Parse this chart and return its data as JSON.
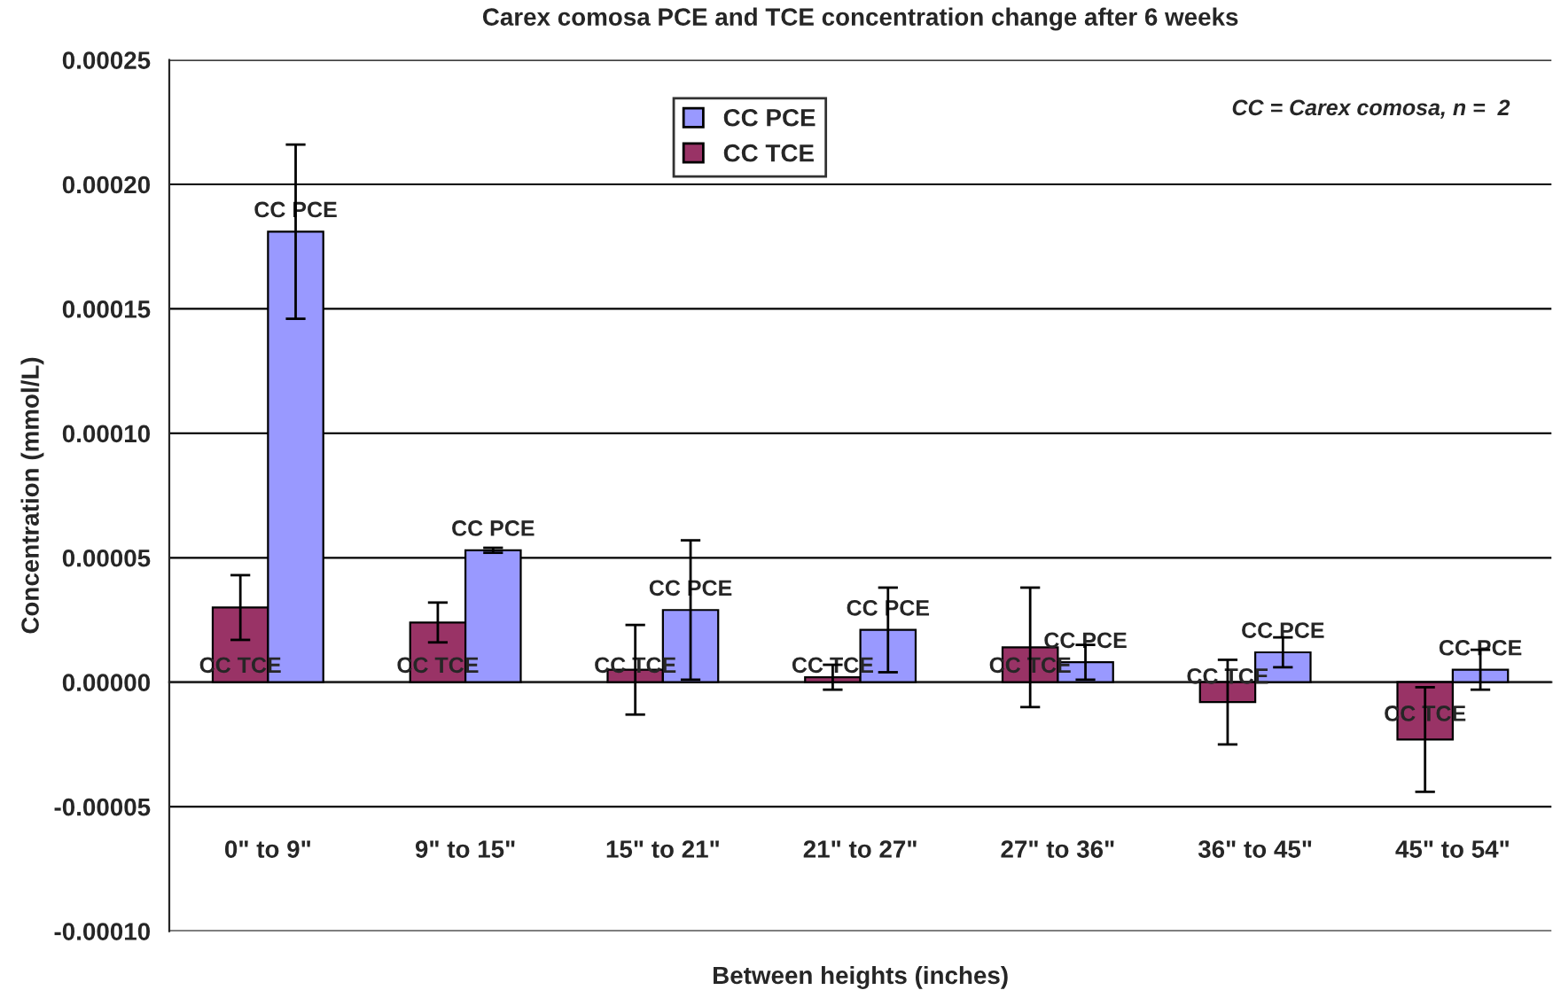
{
  "chart_data": {
    "type": "bar",
    "title": "Carex comosa PCE and TCE concentration change after 6 weeks",
    "xlabel": "Between heights (inches)",
    "ylabel": "Concentration (mmol/L)",
    "categories": [
      "0\" to 9\"",
      "9\" to 15\"",
      "15\" to 21\"",
      "21\" to 27\"",
      "27\" to 36\"",
      "36\" to 45\"",
      "45\" to 54\""
    ],
    "series": [
      {
        "name": "CC TCE",
        "color": "#993366",
        "values": [
          3e-05,
          2.4e-05,
          5e-06,
          2e-06,
          1.4e-05,
          -8e-06,
          -2.3e-05
        ],
        "errors": [
          1.3e-05,
          8e-06,
          1.8e-05,
          5e-06,
          2.4e-05,
          1.7e-05,
          2.1e-05
        ],
        "value_labels": [
          "CC TCE",
          "CC TCE",
          "CC TCE",
          "CC TCE",
          "CC TCE",
          "CC TCE",
          "CC TCE"
        ]
      },
      {
        "name": "CC PCE",
        "color": "#9999ff",
        "values": [
          0.000181,
          5.3e-05,
          2.9e-05,
          2.1e-05,
          8e-06,
          1.2e-05,
          5e-06
        ],
        "errors": [
          3.5e-05,
          1e-06,
          2.8e-05,
          1.7e-05,
          7e-06,
          6e-06,
          8e-06
        ],
        "value_labels": [
          "CC PCE",
          "CC PCE",
          "CC PCE",
          "CC PCE",
          "CC PCE",
          "CC PCE",
          "CC PCE"
        ]
      }
    ],
    "ylim": [
      -0.0001,
      0.00025
    ],
    "yticks": [
      {
        "value": -0.0001,
        "label": "-0.00010"
      },
      {
        "value": -5e-05,
        "label": "-0.00005"
      },
      {
        "value": 0,
        "label": "0.00000"
      },
      {
        "value": 5e-05,
        "label": "0.00005"
      },
      {
        "value": 0.0001,
        "label": "0.00010"
      },
      {
        "value": 0.00015,
        "label": "0.00015"
      },
      {
        "value": 0.0002,
        "label": "0.00020"
      },
      {
        "value": 0.00025,
        "label": "0.00025"
      }
    ],
    "grid": "y",
    "legend": "top",
    "annotations": [
      "CC = Carex comosa, n =  2"
    ]
  }
}
